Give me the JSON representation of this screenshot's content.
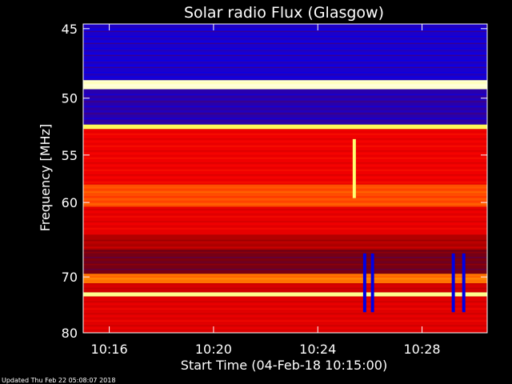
{
  "chart_data": {
    "type": "heatmap",
    "title": "Solar radio Flux (Glasgow)",
    "xlabel": "Start Time (04-Feb-18 10:15:00)",
    "ylabel": "Frequency [MHz]",
    "x_start": "10:15:00",
    "x_range_minutes": [
      0,
      15.5
    ],
    "x_ticks": [
      {
        "label": "10:16",
        "minute": 1
      },
      {
        "label": "10:20",
        "minute": 5
      },
      {
        "label": "10:24",
        "minute": 9
      },
      {
        "label": "10:28",
        "minute": 13
      }
    ],
    "y_range_mhz": [
      80,
      44.7
    ],
    "y_scale": "reciprocal",
    "y_ticks": [
      {
        "label": "45",
        "mhz": 45
      },
      {
        "label": "50",
        "mhz": 50
      },
      {
        "label": "55",
        "mhz": 55
      },
      {
        "label": "60",
        "mhz": 60
      },
      {
        "label": "70",
        "mhz": 70
      },
      {
        "label": "80",
        "mhz": 80
      }
    ],
    "colormap": [
      "#0000a0",
      "#0000ff",
      "#800000",
      "#ff0000",
      "#ffa000",
      "#ffff60",
      "#ffffff"
    ],
    "frequency_bands": [
      {
        "from_mhz": 44.7,
        "to_mhz": 48.6,
        "intensity": 0.2
      },
      {
        "from_mhz": 48.6,
        "to_mhz": 49.3,
        "intensity": 0.95
      },
      {
        "from_mhz": 49.3,
        "to_mhz": 52.2,
        "intensity": 0.22
      },
      {
        "from_mhz": 52.2,
        "to_mhz": 52.6,
        "intensity": 0.82
      },
      {
        "from_mhz": 52.6,
        "to_mhz": 58.0,
        "intensity": 0.48
      },
      {
        "from_mhz": 58.0,
        "to_mhz": 60.5,
        "intensity": 0.58
      },
      {
        "from_mhz": 60.5,
        "to_mhz": 64.0,
        "intensity": 0.47
      },
      {
        "from_mhz": 64.0,
        "to_mhz": 66.0,
        "intensity": 0.4
      },
      {
        "from_mhz": 66.0,
        "to_mhz": 69.5,
        "intensity": 0.32
      },
      {
        "from_mhz": 69.5,
        "to_mhz": 71.0,
        "intensity": 0.62
      },
      {
        "from_mhz": 71.0,
        "to_mhz": 72.5,
        "intensity": 0.44
      },
      {
        "from_mhz": 72.5,
        "to_mhz": 73.2,
        "intensity": 0.88
      },
      {
        "from_mhz": 73.2,
        "to_mhz": 80.0,
        "intensity": 0.46
      }
    ],
    "events": [
      {
        "minute": 10.4,
        "from_mhz": 53.5,
        "to_mhz": 59.5,
        "intensity": 0.85
      },
      {
        "minute": 10.8,
        "from_mhz": 66.5,
        "to_mhz": 76.0,
        "intensity": 0.12
      },
      {
        "minute": 11.1,
        "from_mhz": 66.5,
        "to_mhz": 76.0,
        "intensity": 0.12
      },
      {
        "minute": 14.2,
        "from_mhz": 66.5,
        "to_mhz": 76.0,
        "intensity": 0.12
      },
      {
        "minute": 14.6,
        "from_mhz": 66.5,
        "to_mhz": 76.0,
        "intensity": 0.12
      }
    ]
  },
  "footer": {
    "updated": "Updated Thu Feb 22 05:08:07 2018"
  }
}
